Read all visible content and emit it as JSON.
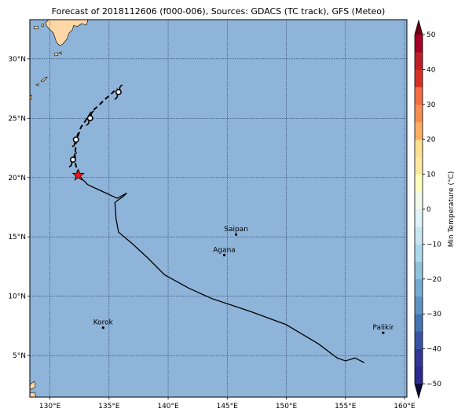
{
  "title": "Forecast of 2018112606 (f000-006), Sources: GDACS (TC track), GFS (Meteo)",
  "colors": {
    "ocean": "#8fb4d9",
    "land": "#fdd7a6",
    "grid": "#1a2a55",
    "track": "#000000",
    "forecast_track": "#000000",
    "star": "#e8161b"
  },
  "map": {
    "lon_range": [
      128.3,
      160.2
    ],
    "lat_range": [
      1.5,
      33.3
    ],
    "lon_ticks": [
      {
        "value": 130,
        "label": "130°E"
      },
      {
        "value": 135,
        "label": "135°E"
      },
      {
        "value": 140,
        "label": "140°E"
      },
      {
        "value": 145,
        "label": "145°E"
      },
      {
        "value": 150,
        "label": "150°E"
      },
      {
        "value": 155,
        "label": "155°E"
      },
      {
        "value": 160,
        "label": "160°E"
      }
    ],
    "lat_ticks": [
      {
        "value": 5,
        "label": "5°N"
      },
      {
        "value": 10,
        "label": "10°N"
      },
      {
        "value": 15,
        "label": "15°N"
      },
      {
        "value": 20,
        "label": "20°N"
      },
      {
        "value": 25,
        "label": "25°N"
      },
      {
        "value": 30,
        "label": "30°N"
      }
    ]
  },
  "cities": [
    {
      "name": "Saipan",
      "lon": 145.75,
      "lat": 15.2
    },
    {
      "name": "Agana",
      "lon": 144.75,
      "lat": 13.47
    },
    {
      "name": "Korok",
      "lon": 134.5,
      "lat": 7.35
    },
    {
      "name": "Palikir",
      "lon": 158.2,
      "lat": 6.92
    }
  ],
  "track_observed": [
    {
      "lon": 156.6,
      "lat": 4.4
    },
    {
      "lon": 155.8,
      "lat": 4.8
    },
    {
      "lon": 155.0,
      "lat": 4.55
    },
    {
      "lon": 154.3,
      "lat": 4.8
    },
    {
      "lon": 152.7,
      "lat": 6.0
    },
    {
      "lon": 150.0,
      "lat": 7.6
    },
    {
      "lon": 147.0,
      "lat": 8.7
    },
    {
      "lon": 143.7,
      "lat": 9.8
    },
    {
      "lon": 141.7,
      "lat": 10.7
    },
    {
      "lon": 139.7,
      "lat": 11.8
    },
    {
      "lon": 138.3,
      "lat": 13.2
    },
    {
      "lon": 137.0,
      "lat": 14.4
    },
    {
      "lon": 135.8,
      "lat": 15.4
    },
    {
      "lon": 135.6,
      "lat": 16.5
    },
    {
      "lon": 135.5,
      "lat": 17.9
    },
    {
      "lon": 135.9,
      "lat": 18.2
    },
    {
      "lon": 136.2,
      "lat": 18.4
    },
    {
      "lon": 136.5,
      "lat": 18.7
    },
    {
      "lon": 135.7,
      "lat": 18.25
    },
    {
      "lon": 134.5,
      "lat": 18.8
    },
    {
      "lon": 133.2,
      "lat": 19.4
    },
    {
      "lon": 132.4,
      "lat": 20.2
    }
  ],
  "track_forecast": [
    {
      "lon": 132.4,
      "lat": 20.2
    },
    {
      "lon": 132.1,
      "lat": 21.4
    },
    {
      "lon": 132.2,
      "lat": 23.0
    },
    {
      "lon": 132.6,
      "lat": 24.2
    },
    {
      "lon": 133.5,
      "lat": 25.5
    },
    {
      "lon": 134.9,
      "lat": 26.8
    },
    {
      "lon": 135.7,
      "lat": 27.5
    }
  ],
  "current_position": {
    "lon": 132.4,
    "lat": 20.2
  },
  "storm_symbols": [
    {
      "lon": 131.95,
      "lat": 21.5
    },
    {
      "lon": 132.2,
      "lat": 23.2
    },
    {
      "lon": 133.4,
      "lat": 25.0
    },
    {
      "lon": 135.8,
      "lat": 27.2
    }
  ],
  "colorbar": {
    "label": "Min Temperature (°C)",
    "min": -50,
    "max": 50,
    "ticks": [
      50,
      40,
      30,
      20,
      10,
      0,
      -10,
      -20,
      -30,
      -40,
      -50
    ],
    "bins": [
      {
        "from": -50,
        "to": -45,
        "color": "#2b2b8e"
      },
      {
        "from": -45,
        "to": -40,
        "color": "#313695"
      },
      {
        "from": -40,
        "to": -35,
        "color": "#3a54a4"
      },
      {
        "from": -35,
        "to": -30,
        "color": "#4574b3"
      },
      {
        "from": -30,
        "to": -25,
        "color": "#5f93c3"
      },
      {
        "from": -25,
        "to": -20,
        "color": "#74add1"
      },
      {
        "from": -20,
        "to": -15,
        "color": "#92c3dd"
      },
      {
        "from": -15,
        "to": -10,
        "color": "#abd9e9"
      },
      {
        "from": -10,
        "to": -5,
        "color": "#c8e7f1"
      },
      {
        "from": -5,
        "to": 0,
        "color": "#e0f3f8"
      },
      {
        "from": 0,
        "to": 5,
        "color": "#f1f9e8"
      },
      {
        "from": 5,
        "to": 10,
        "color": "#ffffbf"
      },
      {
        "from": 10,
        "to": 15,
        "color": "#fee9a0"
      },
      {
        "from": 15,
        "to": 20,
        "color": "#fee090"
      },
      {
        "from": 20,
        "to": 25,
        "color": "#fdae61"
      },
      {
        "from": 25,
        "to": 30,
        "color": "#f88d52"
      },
      {
        "from": 30,
        "to": 35,
        "color": "#f46d43"
      },
      {
        "from": 35,
        "to": 40,
        "color": "#d73027"
      },
      {
        "from": 40,
        "to": 45,
        "color": "#c01f27"
      },
      {
        "from": 45,
        "to": 50,
        "color": "#a50026"
      }
    ],
    "under_color": "#0a0a3c",
    "over_color": "#6b0010"
  }
}
